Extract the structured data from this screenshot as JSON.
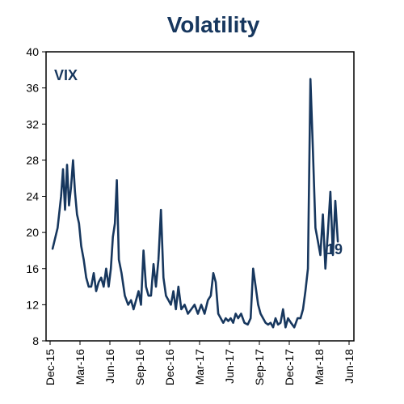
{
  "chart_data": {
    "type": "line",
    "title": "Volatility",
    "series_label": "VIX",
    "end_label": "19",
    "ylim": [
      8,
      40
    ],
    "y_ticks": [
      "8",
      "12",
      "16",
      "20",
      "24",
      "28",
      "32",
      "36",
      "40"
    ],
    "x_ticks": [
      "Dec-15",
      "Mar-16",
      "Jun-16",
      "Sep-16",
      "Dec-16",
      "Mar-17",
      "Jun-17",
      "Sep-17",
      "Dec-17",
      "Mar-18",
      "Jun-18"
    ],
    "grid": false,
    "colors": {
      "line": "#17375e",
      "title": "#17375e",
      "axis": "#000000"
    },
    "series": [
      {
        "values": [
          [
            "Dec-15",
            18.2
          ],
          [
            "Dec-15",
            20.5
          ],
          [
            "Jan-16",
            24.0
          ],
          [
            "Jan-16",
            27.0
          ],
          [
            "Jan-16",
            22.5
          ],
          [
            "Jan-16",
            27.5
          ],
          [
            "Jan-16",
            23.0
          ],
          [
            "Feb-16",
            25.0
          ],
          [
            "Feb-16",
            28.0
          ],
          [
            "Feb-16",
            24.5
          ],
          [
            "Feb-16",
            22.0
          ],
          [
            "Feb-16",
            21.0
          ],
          [
            "Mar-16",
            18.5
          ],
          [
            "Mar-16",
            17.0
          ],
          [
            "Mar-16",
            15.0
          ],
          [
            "Mar-16",
            14.0
          ],
          [
            "Apr-16",
            14.0
          ],
          [
            "Apr-16",
            15.5
          ],
          [
            "Apr-16",
            13.5
          ],
          [
            "Apr-16",
            14.5
          ],
          [
            "May-16",
            15.0
          ],
          [
            "May-16",
            14.0
          ],
          [
            "May-16",
            16.0
          ],
          [
            "May-16",
            14.0
          ],
          [
            "Jun-16",
            16.0
          ],
          [
            "Jun-16",
            19.5
          ],
          [
            "Jun-16",
            21.0
          ],
          [
            "Jun-16",
            25.8
          ],
          [
            "Jun-16",
            17.0
          ],
          [
            "Jul-16",
            15.5
          ],
          [
            "Jul-16",
            13.0
          ],
          [
            "Jul-16",
            12.0
          ],
          [
            "Aug-16",
            12.5
          ],
          [
            "Aug-16",
            11.5
          ],
          [
            "Aug-16",
            12.5
          ],
          [
            "Aug-16",
            13.5
          ],
          [
            "Sep-16",
            12.0
          ],
          [
            "Sep-16",
            18.0
          ],
          [
            "Sep-16",
            14.0
          ],
          [
            "Sep-16",
            13.0
          ],
          [
            "Oct-16",
            13.0
          ],
          [
            "Oct-16",
            16.5
          ],
          [
            "Oct-16",
            14.0
          ],
          [
            "Oct-16",
            17.0
          ],
          [
            "Nov-16",
            22.5
          ],
          [
            "Nov-16",
            15.0
          ],
          [
            "Nov-16",
            13.0
          ],
          [
            "Nov-16",
            12.5
          ],
          [
            "Dec-16",
            12.0
          ],
          [
            "Dec-16",
            13.5
          ],
          [
            "Dec-16",
            11.5
          ],
          [
            "Dec-16",
            14.0
          ],
          [
            "Jan-17",
            11.5
          ],
          [
            "Jan-17",
            12.0
          ],
          [
            "Jan-17",
            11.0
          ],
          [
            "Feb-17",
            11.5
          ],
          [
            "Feb-17",
            12.0
          ],
          [
            "Feb-17",
            11.0
          ],
          [
            "Mar-17",
            12.0
          ],
          [
            "Mar-17",
            11.0
          ],
          [
            "Mar-17",
            12.5
          ],
          [
            "Apr-17",
            13.0
          ],
          [
            "Apr-17",
            15.5
          ],
          [
            "Apr-17",
            14.5
          ],
          [
            "Apr-17",
            11.0
          ],
          [
            "May-17",
            10.5
          ],
          [
            "May-17",
            10.0
          ],
          [
            "May-17",
            10.5
          ],
          [
            "May-17",
            10.2
          ],
          [
            "Jun-17",
            10.5
          ],
          [
            "Jun-17",
            10.0
          ],
          [
            "Jun-17",
            11.0
          ],
          [
            "Jun-17",
            10.5
          ],
          [
            "Jul-17",
            11.0
          ],
          [
            "Jul-17",
            10.0
          ],
          [
            "Jul-17",
            9.8
          ],
          [
            "Aug-17",
            10.5
          ],
          [
            "Aug-17",
            16.0
          ],
          [
            "Aug-17",
            14.0
          ],
          [
            "Aug-17",
            12.0
          ],
          [
            "Sep-17",
            11.0
          ],
          [
            "Sep-17",
            10.5
          ],
          [
            "Sep-17",
            10.0
          ],
          [
            "Sep-17",
            9.8
          ],
          [
            "Oct-17",
            10.0
          ],
          [
            "Oct-17",
            9.5
          ],
          [
            "Oct-17",
            10.5
          ],
          [
            "Oct-17",
            9.8
          ],
          [
            "Nov-17",
            10.0
          ],
          [
            "Nov-17",
            11.5
          ],
          [
            "Nov-17",
            9.5
          ],
          [
            "Nov-17",
            10.5
          ],
          [
            "Dec-17",
            10.0
          ],
          [
            "Dec-17",
            9.5
          ],
          [
            "Dec-17",
            10.5
          ],
          [
            "Jan-18",
            10.5
          ],
          [
            "Jan-18",
            11.5
          ],
          [
            "Jan-18",
            13.5
          ],
          [
            "Jan-18",
            16.0
          ],
          [
            "Feb-18",
            37.0
          ],
          [
            "Feb-18",
            29.0
          ],
          [
            "Feb-18",
            20.5
          ],
          [
            "Feb-18",
            19.0
          ],
          [
            "Mar-18",
            17.5
          ],
          [
            "Mar-18",
            22.0
          ],
          [
            "Mar-18",
            16.0
          ],
          [
            "Mar-18",
            20.0
          ],
          [
            "Apr-18",
            24.5
          ],
          [
            "Apr-18",
            17.5
          ],
          [
            "Apr-18",
            23.5
          ],
          [
            "Apr-18",
            19.0
          ]
        ]
      }
    ]
  }
}
